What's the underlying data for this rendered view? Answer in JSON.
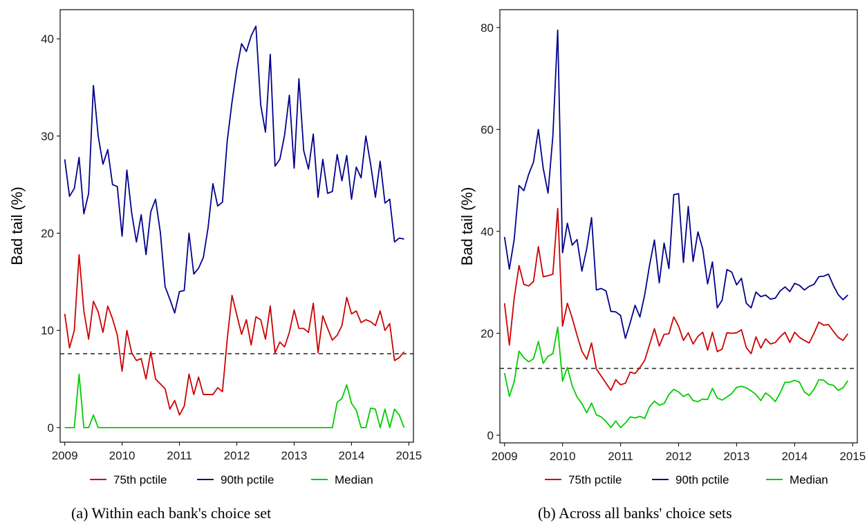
{
  "chart_data": [
    {
      "type": "line",
      "caption": "(a) Within each bank's choice set",
      "title": "",
      "xlabel": "",
      "ylabel": "Bad tail (%)",
      "xlim": [
        2008.92,
        2015.08
      ],
      "ylim": [
        -1.5,
        43.0
      ],
      "xticks": [
        2009,
        2010,
        2011,
        2012,
        2013,
        2014,
        2015
      ],
      "yticks": [
        0,
        10,
        20,
        30,
        40
      ],
      "grid": false,
      "legend_position": "bottom",
      "reference_line": {
        "y": 7.6,
        "style": "dashed",
        "color": "#333333"
      },
      "series": [
        {
          "name": "75th pctile",
          "color": "#cc0000",
          "x": [
            2009.0,
            2009.0833,
            2009.1667,
            2009.25,
            2009.3333,
            2009.4167,
            2009.5,
            2009.5833,
            2009.6667,
            2009.75,
            2009.8333,
            2009.9167,
            2010.0,
            2010.0833,
            2010.1667,
            2010.25,
            2010.3333,
            2010.4167,
            2010.5,
            2010.5833,
            2010.6667,
            2010.75,
            2010.8333,
            2010.9167,
            2011.0,
            2011.0833,
            2011.1667,
            2011.25,
            2011.3333,
            2011.4167,
            2011.5,
            2011.5833,
            2011.6667,
            2011.75,
            2011.8333,
            2011.9167,
            2012.0,
            2012.0833,
            2012.1667,
            2012.25,
            2012.3333,
            2012.4167,
            2012.5,
            2012.5833,
            2012.6667,
            2012.75,
            2012.8333,
            2012.9167,
            2013.0,
            2013.0833,
            2013.1667,
            2013.25,
            2013.3333,
            2013.4167,
            2013.5,
            2013.5833,
            2013.6667,
            2013.75,
            2013.8333,
            2013.9167,
            2014.0,
            2014.0833,
            2014.1667,
            2014.25,
            2014.3333,
            2014.4167,
            2014.5,
            2014.5833,
            2014.6667,
            2014.75,
            2014.8333,
            2014.9167
          ],
          "values": [
            11.7,
            8.2,
            10.0,
            17.8,
            12.0,
            9.1,
            13.0,
            11.9,
            9.8,
            12.5,
            11.2,
            9.5,
            5.8,
            10.0,
            7.7,
            6.9,
            7.1,
            5.0,
            7.8,
            5.0,
            4.5,
            4.0,
            1.9,
            2.8,
            1.3,
            2.2,
            5.5,
            3.4,
            5.2,
            3.4,
            3.4,
            3.4,
            4.1,
            3.7,
            9.1,
            13.6,
            11.6,
            9.6,
            11.1,
            8.5,
            11.4,
            11.1,
            9.1,
            12.5,
            7.7,
            8.8,
            8.3,
            9.8,
            12.1,
            10.2,
            10.2,
            9.8,
            12.8,
            7.7,
            11.5,
            10.2,
            9.0,
            9.5,
            10.5,
            13.4,
            11.7,
            12.0,
            10.8,
            11.1,
            10.9,
            10.5,
            12.0,
            10.0,
            10.7,
            6.9,
            7.2,
            7.8
          ]
        },
        {
          "name": "90th pctile",
          "color": "#00008b",
          "x": [
            2009.0,
            2009.0833,
            2009.1667,
            2009.25,
            2009.3333,
            2009.4167,
            2009.5,
            2009.5833,
            2009.6667,
            2009.75,
            2009.8333,
            2009.9167,
            2010.0,
            2010.0833,
            2010.1667,
            2010.25,
            2010.3333,
            2010.4167,
            2010.5,
            2010.5833,
            2010.6667,
            2010.75,
            2010.8333,
            2010.9167,
            2011.0,
            2011.0833,
            2011.1667,
            2011.25,
            2011.3333,
            2011.4167,
            2011.5,
            2011.5833,
            2011.6667,
            2011.75,
            2011.8333,
            2011.9167,
            2012.0,
            2012.0833,
            2012.1667,
            2012.25,
            2012.3333,
            2012.4167,
            2012.5,
            2012.5833,
            2012.6667,
            2012.75,
            2012.8333,
            2012.9167,
            2013.0,
            2013.0833,
            2013.1667,
            2013.25,
            2013.3333,
            2013.4167,
            2013.5,
            2013.5833,
            2013.6667,
            2013.75,
            2013.8333,
            2013.9167,
            2014.0,
            2014.0833,
            2014.1667,
            2014.25,
            2014.3333,
            2014.4167,
            2014.5,
            2014.5833,
            2014.6667,
            2014.75,
            2014.8333,
            2014.9167
          ],
          "values": [
            27.6,
            23.8,
            24.6,
            27.8,
            22.0,
            24.1,
            35.2,
            30.0,
            27.1,
            28.6,
            25.0,
            24.8,
            19.7,
            26.5,
            22.1,
            19.1,
            21.9,
            17.8,
            22.2,
            23.5,
            20.1,
            14.5,
            13.2,
            11.8,
            14.0,
            14.1,
            20.0,
            15.8,
            16.4,
            17.5,
            20.6,
            25.1,
            22.8,
            23.2,
            29.5,
            33.5,
            36.9,
            39.5,
            38.7,
            40.3,
            41.3,
            33.2,
            30.4,
            38.4,
            26.9,
            27.6,
            30.1,
            34.2,
            26.7,
            35.9,
            28.5,
            26.6,
            30.2,
            23.7,
            27.6,
            24.1,
            24.3,
            28.1,
            25.4,
            28.0,
            23.5,
            26.8,
            25.7,
            30.0,
            27.1,
            23.7,
            27.4,
            23.1,
            23.5,
            19.1,
            19.5,
            19.4
          ]
        },
        {
          "name": "Median",
          "color": "#00cc00",
          "x": [
            2009.0,
            2009.0833,
            2009.1667,
            2009.25,
            2009.3333,
            2009.4167,
            2009.5,
            2009.5833,
            2013.6667,
            2013.75,
            2013.8333,
            2013.9167,
            2014.0,
            2014.0833,
            2014.1667,
            2014.25,
            2014.3333,
            2014.4167,
            2014.5,
            2014.5833,
            2014.6667,
            2014.75,
            2014.8333,
            2014.9167
          ],
          "values": [
            0.0,
            0.0,
            0.0,
            5.5,
            0.0,
            0.0,
            1.3,
            0.0,
            0.0,
            2.6,
            3.0,
            4.4,
            2.5,
            1.8,
            0.0,
            0.0,
            2.0,
            1.9,
            0.0,
            1.9,
            0.0,
            1.9,
            1.3,
            0.0
          ]
        }
      ]
    },
    {
      "type": "line",
      "caption": "(b) Across all banks' choice sets",
      "title": "",
      "xlabel": "",
      "ylabel": "Bad tail (%)",
      "xlim": [
        2008.92,
        2015.08
      ],
      "ylim": [
        -1.5,
        83.5
      ],
      "xticks": [
        2009,
        2010,
        2011,
        2012,
        2013,
        2014,
        2015
      ],
      "yticks": [
        0,
        20,
        40,
        60,
        80
      ],
      "grid": false,
      "legend_position": "bottom",
      "reference_line": {
        "y": 13.1,
        "style": "dashed",
        "color": "#333333"
      },
      "series": [
        {
          "name": "75th pctile",
          "color": "#cc0000",
          "x": [
            2009.0,
            2009.0833,
            2009.1667,
            2009.25,
            2009.3333,
            2009.4167,
            2009.5,
            2009.5833,
            2009.6667,
            2009.75,
            2009.8333,
            2009.9167,
            2010.0,
            2010.0833,
            2010.1667,
            2010.25,
            2010.3333,
            2010.4167,
            2010.5,
            2010.5833,
            2010.6667,
            2010.75,
            2010.8333,
            2010.9167,
            2011.0,
            2011.0833,
            2011.1667,
            2011.25,
            2011.3333,
            2011.4167,
            2011.5,
            2011.5833,
            2011.6667,
            2011.75,
            2011.8333,
            2011.9167,
            2012.0,
            2012.0833,
            2012.1667,
            2012.25,
            2012.3333,
            2012.4167,
            2012.5,
            2012.5833,
            2012.6667,
            2012.75,
            2012.8333,
            2012.9167,
            2013.0,
            2013.0833,
            2013.1667,
            2013.25,
            2013.3333,
            2013.4167,
            2013.5,
            2013.5833,
            2013.6667,
            2013.75,
            2013.8333,
            2013.9167,
            2014.0,
            2014.0833,
            2014.1667,
            2014.25,
            2014.3333,
            2014.4167,
            2014.5,
            2014.5833,
            2014.6667,
            2014.75,
            2014.8333,
            2014.9167
          ],
          "values": [
            25.9,
            17.7,
            26.9,
            33.3,
            29.6,
            29.3,
            30.2,
            37.0,
            31.1,
            31.3,
            31.6,
            44.5,
            21.4,
            25.9,
            23.0,
            19.6,
            16.5,
            14.9,
            18.1,
            13.0,
            11.6,
            10.2,
            8.8,
            10.9,
            9.9,
            10.2,
            12.4,
            12.1,
            13.3,
            14.7,
            17.8,
            20.9,
            17.5,
            19.8,
            19.9,
            23.2,
            21.4,
            18.6,
            20.1,
            17.9,
            19.4,
            20.2,
            16.7,
            20.2,
            16.4,
            16.9,
            20.1,
            20.0,
            20.1,
            20.7,
            17.2,
            16.0,
            19.3,
            17.1,
            18.9,
            17.9,
            18.2,
            19.3,
            20.2,
            18.2,
            20.2,
            19.2,
            18.6,
            18.1,
            20.0,
            22.2,
            21.6,
            21.7,
            20.4,
            19.2,
            18.6,
            19.9
          ]
        },
        {
          "name": "90th pctile",
          "color": "#00008b",
          "x": [
            2009.0,
            2009.0833,
            2009.1667,
            2009.25,
            2009.3333,
            2009.4167,
            2009.5,
            2009.5833,
            2009.6667,
            2009.75,
            2009.8333,
            2009.9167,
            2010.0,
            2010.0833,
            2010.1667,
            2010.25,
            2010.3333,
            2010.4167,
            2010.5,
            2010.5833,
            2010.6667,
            2010.75,
            2010.8333,
            2010.9167,
            2011.0,
            2011.0833,
            2011.1667,
            2011.25,
            2011.3333,
            2011.4167,
            2011.5,
            2011.5833,
            2011.6667,
            2011.75,
            2011.8333,
            2011.9167,
            2012.0,
            2012.0833,
            2012.1667,
            2012.25,
            2012.3333,
            2012.4167,
            2012.5,
            2012.5833,
            2012.6667,
            2012.75,
            2012.8333,
            2012.9167,
            2013.0,
            2013.0833,
            2013.1667,
            2013.25,
            2013.3333,
            2013.4167,
            2013.5,
            2013.5833,
            2013.6667,
            2013.75,
            2013.8333,
            2013.9167,
            2014.0,
            2014.0833,
            2014.1667,
            2014.25,
            2014.3333,
            2014.4167,
            2014.5,
            2014.5833,
            2014.6667,
            2014.75,
            2014.8333,
            2014.9167
          ],
          "values": [
            38.9,
            32.6,
            38.4,
            49.0,
            48.0,
            51.2,
            53.6,
            60.0,
            52.4,
            47.5,
            58.7,
            79.5,
            35.8,
            41.6,
            37.3,
            38.4,
            32.2,
            36.6,
            42.7,
            28.5,
            28.8,
            28.3,
            24.3,
            24.2,
            23.5,
            19.0,
            22.1,
            25.5,
            23.2,
            27.6,
            33.4,
            38.3,
            29.9,
            37.7,
            32.7,
            47.2,
            47.4,
            33.9,
            44.9,
            34.1,
            39.9,
            36.5,
            29.7,
            34.0,
            25.0,
            26.5,
            32.5,
            32.0,
            29.5,
            30.8,
            25.9,
            25.0,
            28.1,
            27.2,
            27.5,
            26.7,
            26.9,
            28.3,
            29.1,
            28.2,
            29.8,
            29.4,
            28.5,
            29.2,
            29.6,
            31.1,
            31.2,
            31.6,
            29.4,
            27.6,
            26.6,
            27.5
          ]
        },
        {
          "name": "Median",
          "color": "#00cc00",
          "x": [
            2009.0,
            2009.0833,
            2009.1667,
            2009.25,
            2009.3333,
            2009.4167,
            2009.5,
            2009.5833,
            2009.6667,
            2009.75,
            2009.8333,
            2009.9167,
            2010.0,
            2010.0833,
            2010.1667,
            2010.25,
            2010.3333,
            2010.4167,
            2010.5,
            2010.5833,
            2010.6667,
            2010.75,
            2010.8333,
            2010.9167,
            2011.0,
            2011.0833,
            2011.1667,
            2011.25,
            2011.3333,
            2011.4167,
            2011.5,
            2011.5833,
            2011.6667,
            2011.75,
            2011.8333,
            2011.9167,
            2012.0,
            2012.0833,
            2012.1667,
            2012.25,
            2012.3333,
            2012.4167,
            2012.5,
            2012.5833,
            2012.6667,
            2012.75,
            2012.8333,
            2012.9167,
            2013.0,
            2013.0833,
            2013.1667,
            2013.25,
            2013.3333,
            2013.4167,
            2013.5,
            2013.5833,
            2013.6667,
            2013.75,
            2013.8333,
            2013.9167,
            2014.0,
            2014.0833,
            2014.1667,
            2014.25,
            2014.3333,
            2014.4167,
            2014.5,
            2014.5833,
            2014.6667,
            2014.75,
            2014.8333,
            2014.9167
          ],
          "values": [
            12.2,
            7.6,
            10.5,
            16.5,
            15.2,
            14.4,
            15.0,
            18.4,
            14.1,
            15.5,
            16.0,
            21.2,
            10.6,
            13.3,
            9.7,
            7.5,
            6.2,
            4.4,
            6.3,
            4.0,
            3.6,
            2.7,
            1.5,
            2.8,
            1.5,
            2.4,
            3.6,
            3.4,
            3.7,
            3.3,
            5.6,
            6.7,
            5.9,
            6.2,
            8.0,
            9.0,
            8.5,
            7.6,
            8.1,
            6.8,
            6.6,
            7.1,
            7.0,
            9.2,
            7.3,
            6.9,
            7.5,
            8.2,
            9.4,
            9.6,
            9.3,
            8.7,
            8.0,
            6.8,
            8.3,
            7.6,
            6.6,
            8.3,
            10.4,
            10.4,
            10.8,
            10.4,
            8.5,
            7.8,
            9.0,
            10.9,
            10.8,
            10.0,
            9.8,
            8.8,
            9.3,
            10.7
          ]
        }
      ]
    }
  ]
}
